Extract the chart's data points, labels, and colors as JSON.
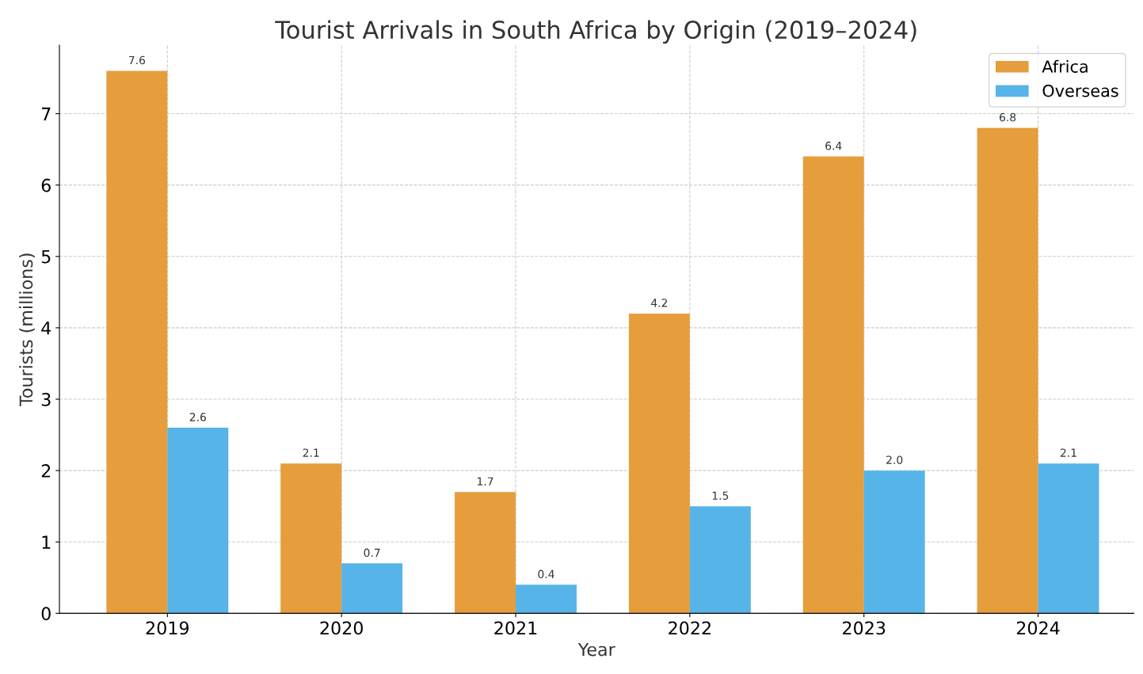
{
  "chart_data": {
    "type": "bar",
    "title": "Tourist Arrivals in South Africa by Origin (2019–2024)",
    "xlabel": "Year",
    "ylabel": "Tourists (millions)",
    "categories": [
      "2019",
      "2020",
      "2021",
      "2022",
      "2023",
      "2024"
    ],
    "series": [
      {
        "name": "Africa",
        "color": "#e69d3c",
        "values": [
          7.6,
          2.1,
          1.7,
          4.2,
          6.4,
          6.8
        ],
        "value_labels": [
          "7.6",
          "2.1",
          "1.7",
          "4.2",
          "6.4",
          "6.8"
        ]
      },
      {
        "name": "Overseas",
        "color": "#56b4e9",
        "values": [
          2.6,
          0.7,
          0.4,
          1.5,
          2,
          2.1
        ],
        "value_labels": [
          "2.6",
          "0.7",
          "0.4",
          "1.5",
          "2.0",
          "2.1"
        ]
      }
    ],
    "ylim": [
      0,
      7.96
    ],
    "yticks": [
      0,
      1,
      2,
      3,
      4,
      5,
      6,
      7
    ],
    "grid": true,
    "legend": "top right"
  }
}
